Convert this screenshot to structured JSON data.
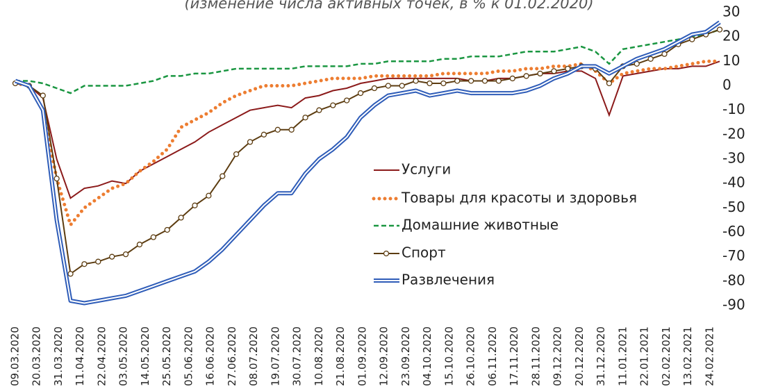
{
  "chart_data": {
    "type": "line",
    "subtitle": "(изменение числа активных точек, в % к 01.02.2020)",
    "x": [
      "09.03.2020",
      "16.03.2020",
      "23.03.2020",
      "30.03.2020",
      "06.04.2020",
      "13.04.2020",
      "20.04.2020",
      "27.04.2020",
      "04.05.2020",
      "11.05.2020",
      "18.05.2020",
      "25.05.2020",
      "01.06.2020",
      "08.06.2020",
      "15.06.2020",
      "22.06.2020",
      "29.06.2020",
      "06.07.2020",
      "13.07.2020",
      "20.07.2020",
      "27.07.2020",
      "03.08.2020",
      "10.08.2020",
      "17.08.2020",
      "24.08.2020",
      "31.08.2020",
      "07.09.2020",
      "14.09.2020",
      "21.09.2020",
      "28.09.2020",
      "05.10.2020",
      "12.10.2020",
      "19.10.2020",
      "26.10.2020",
      "02.11.2020",
      "09.11.2020",
      "16.11.2020",
      "23.11.2020",
      "30.11.2020",
      "07.12.2020",
      "14.12.2020",
      "21.12.2020",
      "28.12.2020",
      "04.01.2021",
      "11.01.2021",
      "18.01.2021",
      "25.01.2021",
      "01.02.2021",
      "08.02.2021",
      "15.02.2021",
      "22.02.2021",
      "01.03.2021"
    ],
    "xlim": [
      "09.03.2020",
      "01.03.2021"
    ],
    "xticks": [
      "09.03.2020",
      "20.03.2020",
      "31.03.2020",
      "11.04.2020",
      "22.04.2020",
      "03.05.2020",
      "14.05.2020",
      "25.05.2020",
      "05.06.2020",
      "16.06.2020",
      "27.06.2020",
      "08.07.2020",
      "19.07.2020",
      "30.07.2020",
      "10.08.2020",
      "21.08.2020",
      "01.09.2020",
      "12.09.2020",
      "23.09.2020",
      "04.10.2020",
      "15.10.2020",
      "26.10.2020",
      "06.11.2020",
      "17.11.2020",
      "28.11.2020",
      "09.12.2020",
      "20.12.2020",
      "31.12.2020",
      "11.01.2021",
      "22.01.2021",
      "02.02.2021",
      "13.02.2021",
      "24.02.2021"
    ],
    "ylim": [
      -90,
      30
    ],
    "yticks": [
      30,
      20,
      10,
      0,
      -10,
      -20,
      -30,
      -40,
      -50,
      -60,
      -70,
      -80,
      -90
    ],
    "series": [
      {
        "name": "Услуги",
        "color": "#8b1a1a",
        "style": "solid",
        "values": [
          1,
          0,
          -5,
          -30,
          -46,
          -42,
          -41,
          -39,
          -40,
          -35,
          -32,
          -29,
          -26,
          -23,
          -19,
          -16,
          -13,
          -10,
          -9,
          -8,
          -9,
          -5,
          -4,
          -2,
          -1,
          1,
          2,
          3,
          3,
          3,
          3,
          3,
          3,
          2,
          2,
          3,
          3,
          4,
          5,
          5,
          6,
          6,
          3,
          -12,
          4,
          5,
          6,
          7,
          7,
          8,
          8,
          10
        ]
      },
      {
        "name": "Товары для красоты и здоровья",
        "color": "#ed7d31",
        "style": "dotted",
        "values": [
          1,
          0,
          -10,
          -38,
          -57,
          -50,
          -46,
          -42,
          -40,
          -35,
          -31,
          -26,
          -17,
          -14,
          -11,
          -7,
          -4,
          -2,
          0,
          0,
          0,
          1,
          2,
          3,
          3,
          3,
          4,
          4,
          4,
          4,
          4,
          5,
          5,
          5,
          5,
          6,
          6,
          7,
          7,
          8,
          8,
          9,
          6,
          1,
          5,
          6,
          7,
          7,
          8,
          9,
          10,
          10
        ]
      },
      {
        "name": "Домашние животные",
        "color": "#1a9641",
        "style": "dashed",
        "values": [
          2,
          2,
          1,
          -1,
          -3,
          0,
          0,
          0,
          0,
          1,
          2,
          4,
          4,
          5,
          5,
          6,
          7,
          7,
          7,
          7,
          7,
          8,
          8,
          8,
          8,
          9,
          9,
          10,
          10,
          10,
          10,
          11,
          11,
          12,
          12,
          12,
          13,
          14,
          14,
          14,
          15,
          16,
          14,
          9,
          15,
          16,
          17,
          18,
          19,
          20,
          21,
          23
        ]
      },
      {
        "name": "Спорт",
        "color": "#5c3c10",
        "style": "markers",
        "values": [
          1,
          0,
          -4,
          -38,
          -77,
          -73,
          -72,
          -70,
          -69,
          -65,
          -62,
          -59,
          -54,
          -49,
          -45,
          -37,
          -28,
          -23,
          -20,
          -18,
          -18,
          -13,
          -10,
          -8,
          -6,
          -3,
          -1,
          0,
          0,
          2,
          1,
          1,
          2,
          2,
          2,
          2,
          3,
          4,
          5,
          6,
          7,
          8,
          7,
          1,
          8,
          9,
          11,
          13,
          17,
          19,
          21,
          23
        ]
      },
      {
        "name": "Развлечения",
        "color": "#2e5cb8",
        "style": "double",
        "values": [
          2,
          0,
          -10,
          -55,
          -88,
          -89,
          -88,
          -87,
          -86,
          -84,
          -82,
          -80,
          -78,
          -76,
          -72,
          -67,
          -61,
          -55,
          -49,
          -44,
          -44,
          -36,
          -30,
          -26,
          -21,
          -13,
          -8,
          -4,
          -3,
          -2,
          -4,
          -3,
          -2,
          -3,
          -3,
          -3,
          -3,
          -2,
          0,
          3,
          5,
          8,
          8,
          5,
          8,
          11,
          13,
          15,
          18,
          21,
          22,
          26
        ]
      }
    ]
  }
}
